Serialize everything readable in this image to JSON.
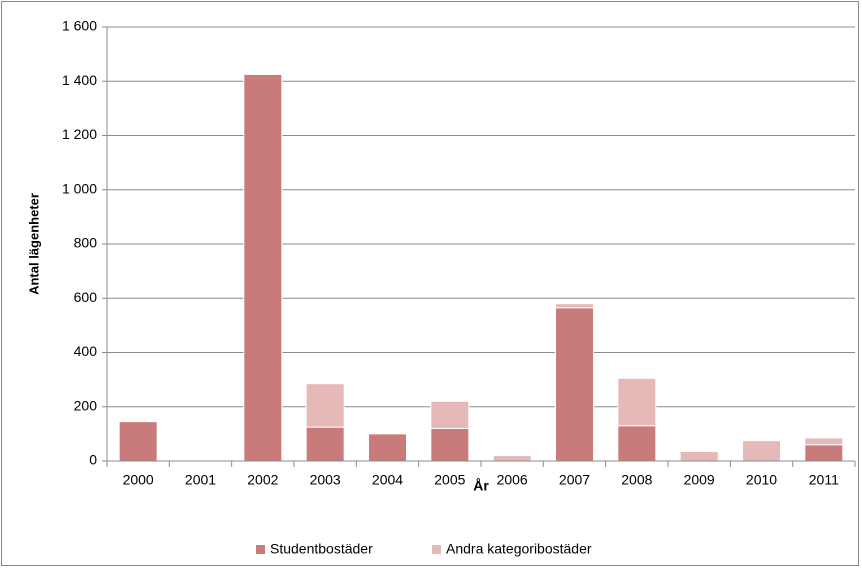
{
  "chart_data": {
    "type": "stacked_bar",
    "x_label": "År",
    "y_label": "Antal lägenheter",
    "categories": [
      "2000",
      "2001",
      "2002",
      "2003",
      "2004",
      "2005",
      "2006",
      "2007",
      "2008",
      "2009",
      "2010",
      "2011"
    ],
    "series": [
      {
        "name": "Studentbostäder",
        "color": "#c97a7b",
        "values": [
          145,
          0,
          1425,
          125,
          100,
          120,
          0,
          565,
          130,
          0,
          0,
          60
        ]
      },
      {
        "name": "Andra kategoribostäder",
        "color": "#e6b9b9",
        "values": [
          0,
          0,
          0,
          160,
          0,
          100,
          20,
          15,
          175,
          35,
          75,
          25
        ]
      }
    ],
    "ylim": [
      0,
      1600
    ],
    "yticks": [
      0,
      200,
      400,
      600,
      800,
      {
        "value": 1000,
        "label": "1 000"
      },
      {
        "value": 1200,
        "label": "1 200"
      },
      {
        "value": 1400,
        "label": "1 400"
      },
      {
        "value": 1600,
        "label": "1 600"
      }
    ],
    "grid": true,
    "legend": "bottom"
  }
}
